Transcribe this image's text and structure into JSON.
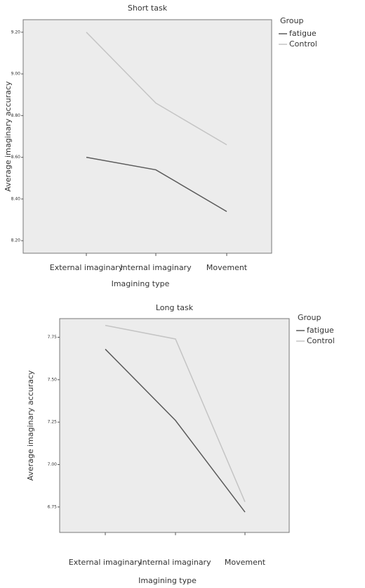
{
  "chart_data": [
    {
      "type": "line",
      "title": "Short task",
      "x_label": "Imagining type",
      "y_label": "Average imaginary accuracy",
      "categories": [
        "External imaginary",
        "Internal imaginary",
        "Movement"
      ],
      "series": [
        {
          "name": "fatigue",
          "color": "#5a5a5a",
          "values": [
            8.6,
            8.54,
            8.34
          ]
        },
        {
          "name": "Control",
          "color": "#c4c4c4",
          "values": [
            9.2,
            8.86,
            8.66
          ]
        }
      ],
      "ylim": [
        8.14,
        9.26
      ],
      "yticks": [
        {
          "value": 8.2,
          "label": "8.20"
        },
        {
          "value": 8.4,
          "label": "8.40"
        },
        {
          "value": 8.6,
          "label": "8.60"
        },
        {
          "value": 8.8,
          "label": "8.80"
        },
        {
          "value": 9.0,
          "label": "9.00"
        },
        {
          "value": 9.2,
          "label": "9.20"
        }
      ],
      "legend_title": "Group",
      "legend": "right"
    },
    {
      "type": "line",
      "title": "Long task",
      "x_label": "Imagining type",
      "y_label": "Average imaginary accuracy",
      "categories": [
        "External imaginary",
        "Internal imaginary",
        "Movement"
      ],
      "series": [
        {
          "name": "fatigue",
          "color": "#5a5a5a",
          "values": [
            7.68,
            7.26,
            6.72
          ]
        },
        {
          "name": "Control",
          "color": "#c4c4c4",
          "values": [
            7.82,
            7.74,
            6.78
          ]
        }
      ],
      "ylim": [
        6.6,
        7.86
      ],
      "yticks": [
        6.75,
        {
          "value": 7.0,
          "label": "7.00"
        },
        7.25,
        {
          "value": 7.5,
          "label": "7.50"
        },
        7.75
      ],
      "legend_title": "Group",
      "legend": "right"
    }
  ]
}
